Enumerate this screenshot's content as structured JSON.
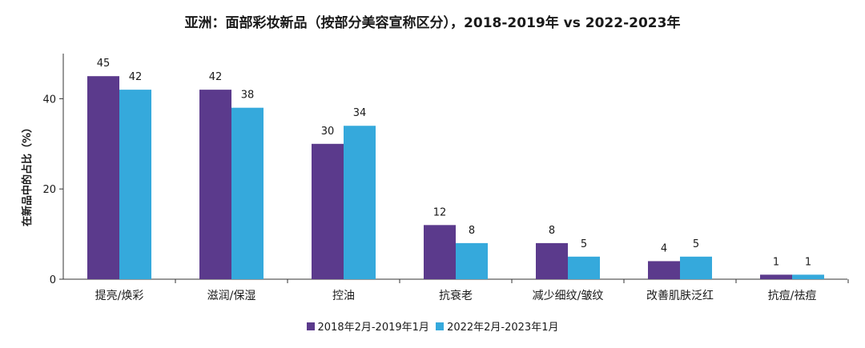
{
  "chart_data": {
    "type": "bar",
    "title": "亚洲：面部彩妆新品（按部分美容宣称区分），2018-2019年 vs 2022-2023年",
    "xlabel": "",
    "ylabel": "在新品中的占比（%）",
    "ylim": [
      0,
      50
    ],
    "yticks": [
      0,
      20,
      40
    ],
    "grid": false,
    "legend_position": "bottom",
    "categories": [
      "提亮/焕彩",
      "滋润/保湿",
      "控油",
      "抗衰老",
      "减少细纹/皱纹",
      "改善肌肤泛红",
      "抗痘/祛痘"
    ],
    "series": [
      {
        "name": "2018年2月-2019年1月",
        "color": "#5b3a8c",
        "values": [
          45,
          42,
          30,
          12,
          8,
          4,
          1
        ]
      },
      {
        "name": "2022年2月-2023年1月",
        "color": "#35a9dc",
        "values": [
          42,
          38,
          34,
          8,
          5,
          5,
          1
        ]
      }
    ]
  }
}
